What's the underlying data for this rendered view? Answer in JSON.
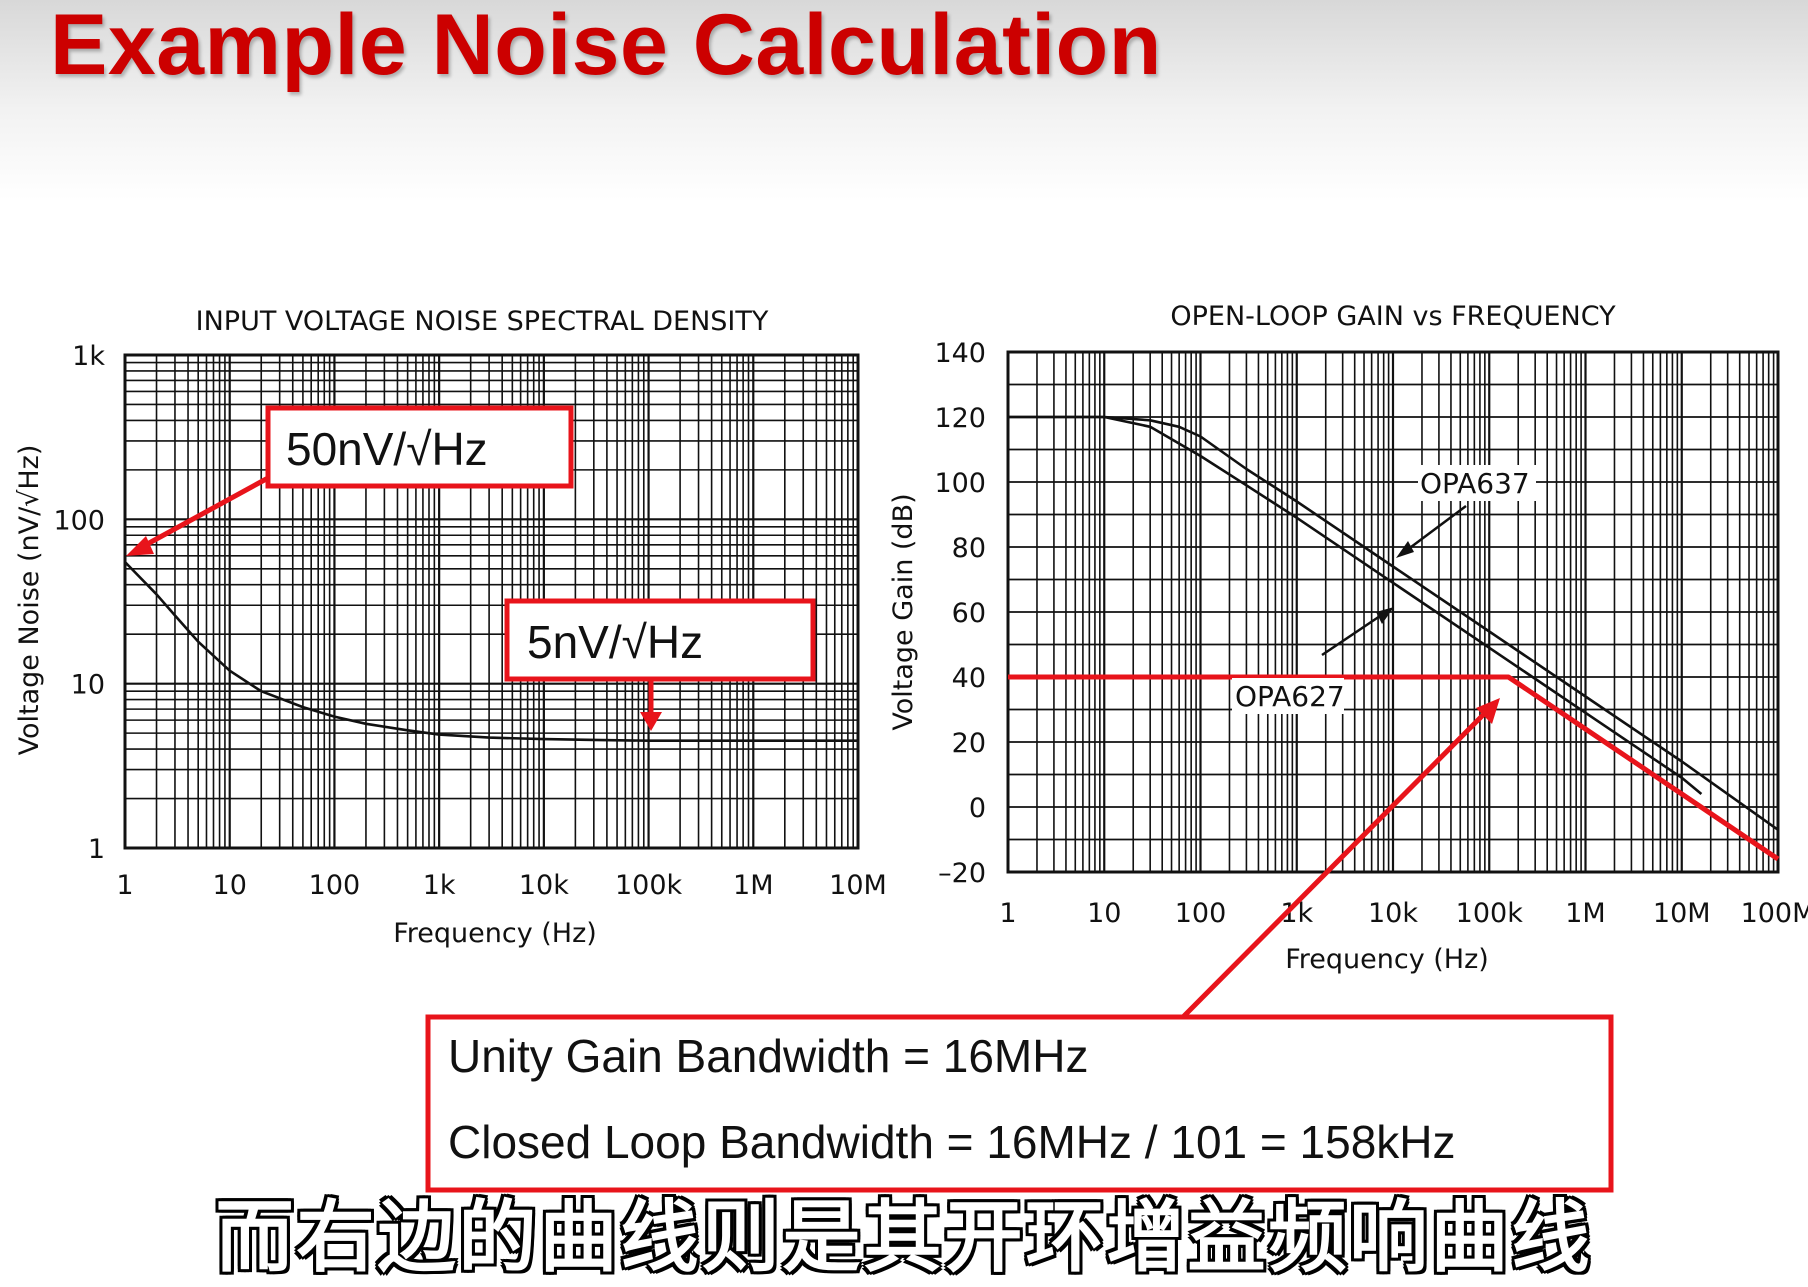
{
  "slide": {
    "title": "Example Noise Calculation",
    "subtitle": "而右边的曲线则是其开环增益频响曲线"
  },
  "colors": {
    "accent": "#e8141b",
    "title": "#cc0000",
    "ink": "#111111"
  },
  "annotations": {
    "noise_callout_1": "50nV/√Hz",
    "noise_callout_2": "5nV/√Hz",
    "bandwidth_box": {
      "line1": "Unity Gain Bandwidth = 16MHz",
      "line2": "Closed Loop Bandwidth = 16MHz / 101 = 158kHz"
    }
  },
  "chart_data": [
    {
      "type": "line",
      "title": "INPUT VOLTAGE NOISE SPECTRAL DENSITY",
      "xlabel": "Frequency (Hz)",
      "ylabel": "Voltage Noise (nV/√Hz)",
      "x_scale": "log",
      "y_scale": "log",
      "xlim": [
        1,
        10000000
      ],
      "ylim": [
        1,
        1000
      ],
      "x_tick_values": [
        1,
        10,
        100,
        1000,
        10000,
        100000,
        1000000,
        10000000
      ],
      "x_tick_labels": [
        "1",
        "10",
        "100",
        "1k",
        "10k",
        "100k",
        "1M",
        "10M"
      ],
      "y_tick_values": [
        1,
        10,
        100,
        1000
      ],
      "y_tick_labels": [
        "1",
        "10",
        "100",
        "1k"
      ],
      "grid": true,
      "series": [
        {
          "x": [
            1,
            2,
            3,
            5,
            10,
            20,
            50,
            100,
            200,
            500,
            1000,
            3000,
            10000,
            30000,
            100000,
            1000000,
            10000000
          ],
          "values": [
            55,
            35,
            26,
            18,
            12,
            9,
            7.2,
            6.3,
            5.7,
            5.2,
            4.9,
            4.7,
            4.6,
            4.55,
            4.5,
            4.5,
            4.5
          ]
        }
      ]
    },
    {
      "type": "line",
      "title": "OPEN-LOOP GAIN vs FREQUENCY",
      "xlabel": "Frequency (Hz)",
      "ylabel": "Voltage Gain (dB)",
      "x_scale": "log",
      "xlim": [
        1,
        100000000
      ],
      "ylim": [
        -20,
        140
      ],
      "x_tick_values": [
        1,
        10,
        100,
        1000,
        10000,
        100000,
        1000000,
        10000000,
        100000000
      ],
      "x_tick_labels": [
        "1",
        "10",
        "100",
        "1k",
        "10k",
        "100k",
        "1M",
        "10M",
        "100M"
      ],
      "y_tick_values": [
        -20,
        0,
        20,
        40,
        60,
        80,
        100,
        120,
        140
      ],
      "y_tick_labels": [
        "–20",
        "0",
        "20",
        "40",
        "60",
        "80",
        "100",
        "120",
        "140"
      ],
      "grid": true,
      "series": [
        {
          "name": "OPA637",
          "x": [
            1,
            10,
            30,
            60,
            100,
            300,
            1000,
            10000,
            100000,
            1000000,
            10000000,
            100000000
          ],
          "values": [
            120,
            120,
            119,
            117,
            114,
            104,
            94,
            74,
            54,
            34,
            14,
            -7
          ]
        },
        {
          "name": "OPA627",
          "x": [
            1,
            10,
            30,
            100,
            300,
            1000,
            10000,
            100000,
            1000000,
            10000000,
            16000000
          ],
          "values": [
            120,
            120,
            117,
            108,
            99,
            89,
            69,
            49,
            29,
            9,
            4
          ]
        },
        {
          "x": [
            1,
            10,
            100,
            1000,
            10000,
            158000,
            1000000,
            10000000,
            100000000
          ],
          "values": [
            40,
            40,
            40,
            40,
            40,
            40,
            24,
            4,
            -16
          ]
        }
      ]
    }
  ]
}
